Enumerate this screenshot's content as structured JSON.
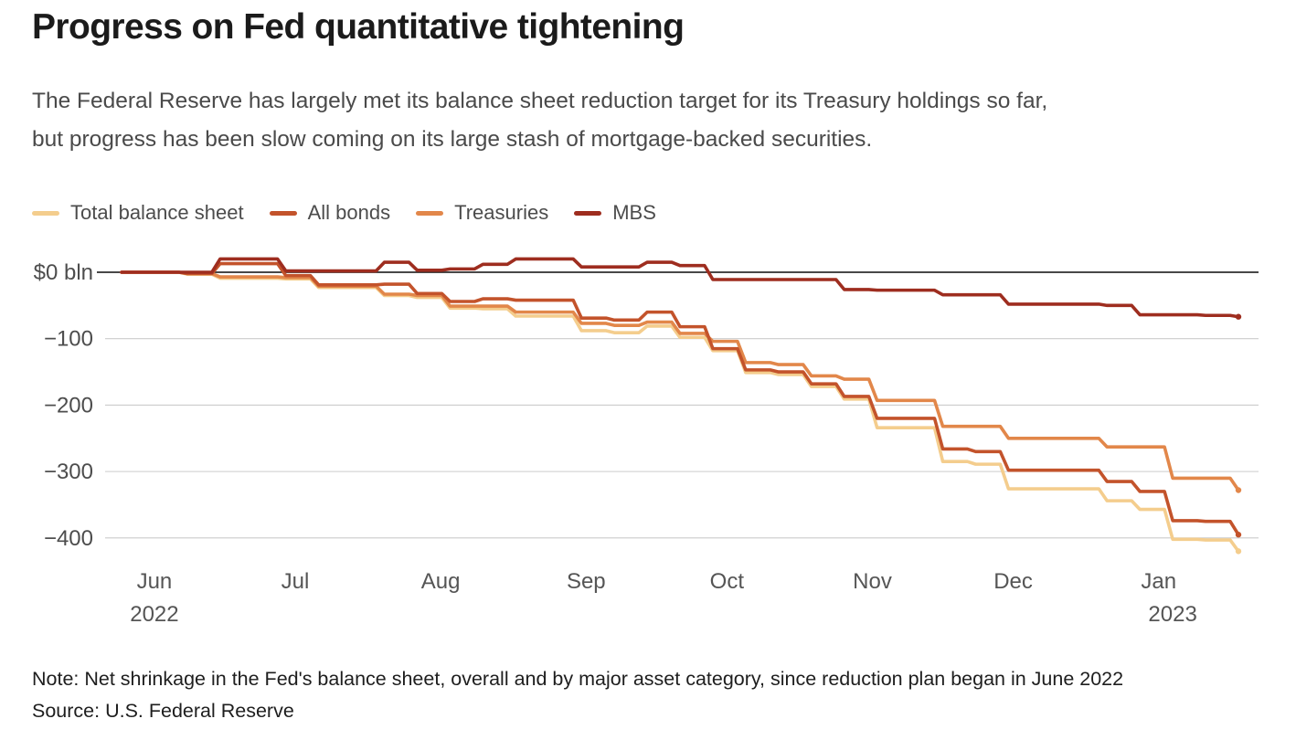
{
  "header": {
    "title": "Progress on Fed quantitative tightening",
    "subtitle_lines": [
      "The Federal Reserve has largely met its balance sheet reduction target for its Treasury holdings so far,",
      "but progress has been slow coming on its large stash of mortgage-backed securities."
    ]
  },
  "footer": {
    "note": "Note: Net shrinkage in the Fed's balance sheet, overall and by major asset category, since reduction plan began in June 2022",
    "source": "Source: U.S. Federal Reserve"
  },
  "chart_data": {
    "type": "line",
    "step_rendering": true,
    "unit_label": "$ bln",
    "legend_position": "top-left",
    "y_axis": {
      "grid": true,
      "range": [
        -450,
        30
      ],
      "ticks": [
        {
          "label": "$0 bln",
          "value": 0
        },
        {
          "label": "−100",
          "value": -100
        },
        {
          "label": "−200",
          "value": -200
        },
        {
          "label": "−300",
          "value": -300
        },
        {
          "label": "−400",
          "value": -400
        }
      ]
    },
    "x_axis": {
      "x_days": [
        0,
        7,
        14,
        21,
        28,
        35,
        42,
        49,
        56,
        63,
        70,
        77,
        84,
        91,
        98,
        105,
        112,
        119,
        126,
        133,
        140,
        147,
        154,
        161,
        168,
        175,
        182,
        189,
        196,
        203,
        210,
        217,
        224,
        231,
        238
      ],
      "month_ticks": [
        {
          "label": "Jun",
          "day": 7
        },
        {
          "label": "Jul",
          "day": 37
        },
        {
          "label": "Aug",
          "day": 68
        },
        {
          "label": "Sep",
          "day": 99
        },
        {
          "label": "Oct",
          "day": 129
        },
        {
          "label": "Nov",
          "day": 160
        },
        {
          "label": "Dec",
          "day": 190
        },
        {
          "label": "Jan",
          "day": 221
        }
      ],
      "year_ticks": [
        {
          "label": "2022",
          "day": 7
        },
        {
          "label": "2023",
          "day": 224
        }
      ]
    },
    "series": [
      {
        "name": "Total balance sheet",
        "color": "#F4CD8D",
        "z": 0,
        "values": [
          0,
          0,
          -3,
          -9,
          -9,
          -10,
          -23,
          -23,
          -35,
          -38,
          -54,
          -55,
          -66,
          -66,
          -88,
          -91,
          -81,
          -98,
          -118,
          -151,
          -154,
          -172,
          -191,
          -234,
          -234,
          -285,
          -289,
          -326,
          -326,
          -326,
          -344,
          -357,
          -402,
          -403,
          -420
        ]
      },
      {
        "name": "All bonds",
        "color": "#C3532B",
        "z": 2,
        "values": [
          0,
          0,
          -2,
          13,
          13,
          -5,
          -19,
          -19,
          -18,
          -32,
          -44,
          -40,
          -42,
          -42,
          -69,
          -72,
          -60,
          -82,
          -115,
          -147,
          -150,
          -168,
          -187,
          -220,
          -220,
          -266,
          -270,
          -298,
          -298,
          -298,
          -315,
          -330,
          -374,
          -375,
          -395
        ]
      },
      {
        "name": "Treasuries",
        "color": "#E2874A",
        "z": 1,
        "values": [
          0,
          0,
          -2,
          -7,
          -7,
          -8,
          -21,
          -21,
          -33,
          -35,
          -51,
          -51,
          -60,
          -60,
          -77,
          -80,
          -75,
          -92,
          -104,
          -136,
          -139,
          -156,
          -161,
          -193,
          -193,
          -232,
          -232,
          -250,
          -250,
          -250,
          -263,
          -263,
          -310,
          -310,
          -328
        ]
      },
      {
        "name": "MBS",
        "color": "#9E2D1F",
        "z": 3,
        "values": [
          0,
          0,
          0,
          20,
          20,
          2,
          2,
          2,
          15,
          3,
          5,
          12,
          20,
          20,
          8,
          8,
          15,
          10,
          -11,
          -11,
          -11,
          -11,
          -26,
          -27,
          -27,
          -34,
          -34,
          -48,
          -48,
          -48,
          -50,
          -64,
          -64,
          -65,
          -67
        ]
      }
    ]
  }
}
